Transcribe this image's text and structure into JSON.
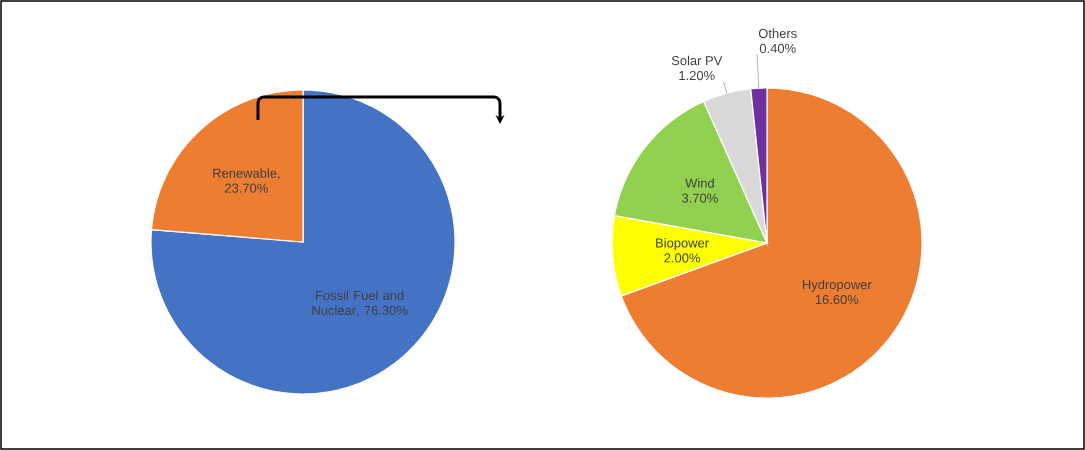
{
  "chart_data": [
    {
      "type": "pie",
      "categories": [
        "Fossil Fuel and Nuclear",
        "Renewable"
      ],
      "values": [
        76.3,
        23.7
      ],
      "value_labels": [
        ", 76.30%",
        ", 23.70%"
      ],
      "colors": [
        "#4472c4",
        "#ed7d31"
      ]
    },
    {
      "type": "pie",
      "categories": [
        "Hydropower",
        "Biopower",
        "Wind",
        "Solar PV",
        "Others"
      ],
      "values": [
        16.6,
        2.0,
        3.7,
        1.2,
        0.4
      ],
      "value_labels": [
        "16.60%",
        "2.00%",
        "3.70%",
        "1.20%",
        "0.40%"
      ],
      "colors": [
        "#ed7d31",
        "#ffff00",
        "#92d050",
        "#d9d9d9",
        "#7030a0"
      ]
    }
  ]
}
